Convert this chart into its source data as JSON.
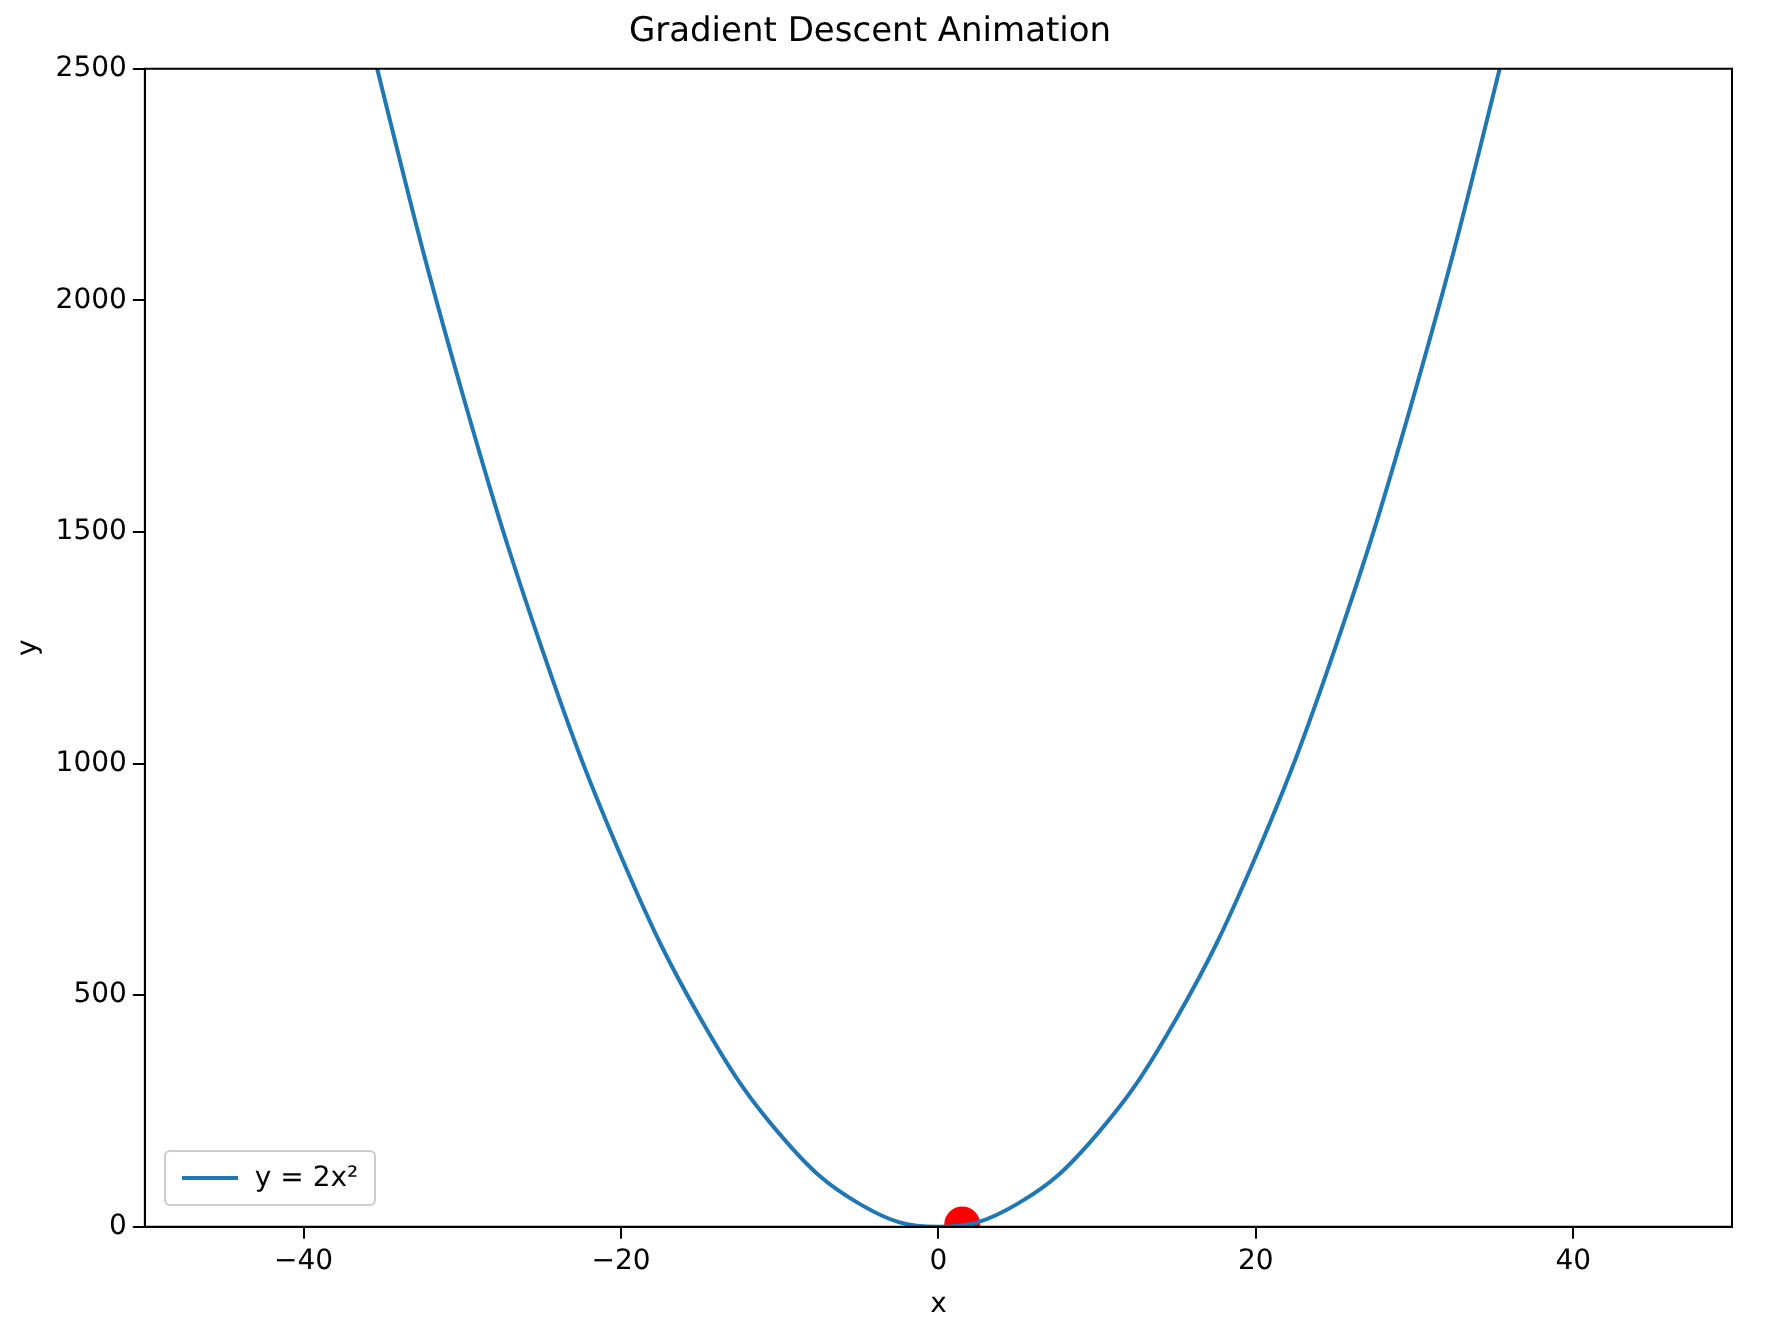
{
  "chart_data": {
    "type": "line",
    "title": "Gradient Descent Animation",
    "xlabel": "x",
    "ylabel": "y",
    "xlim": [
      -50,
      50
    ],
    "ylim": [
      0,
      2500
    ],
    "xticks": [
      {
        "value": -40,
        "label": "−40"
      },
      {
        "value": -20,
        "label": "−20"
      },
      0,
      20,
      40
    ],
    "yticks": [
      0,
      500,
      1000,
      1500,
      2000,
      2500
    ],
    "grid": false,
    "legend": "bottom left",
    "series": [
      {
        "name": "y = 2x²",
        "color": "#1f77b4",
        "marker": "none",
        "line_style": "solid",
        "x": [
          -35.36,
          -35,
          -32.5,
          -30,
          -27.5,
          -25,
          -22.5,
          -20,
          -17.5,
          -15,
          -12.5,
          -10,
          -7.5,
          -5,
          -2.5,
          0,
          2.5,
          5,
          7.5,
          10,
          12.5,
          15,
          17.5,
          20,
          22.5,
          25,
          27.5,
          30,
          32.5,
          35,
          35.36
        ],
        "values": [
          2500,
          2450,
          2110,
          1800,
          1510,
          1250,
          1010,
          800,
          610,
          450,
          310,
          200,
          110,
          50,
          10,
          0,
          10,
          50,
          110,
          200,
          310,
          450,
          610,
          800,
          1010,
          1250,
          1510,
          1800,
          2110,
          2450,
          2500
        ]
      },
      {
        "type": "scatter",
        "color": "#ff0000",
        "marker": "circle",
        "x": [
          1.5
        ],
        "values": [
          5
        ]
      }
    ]
  }
}
